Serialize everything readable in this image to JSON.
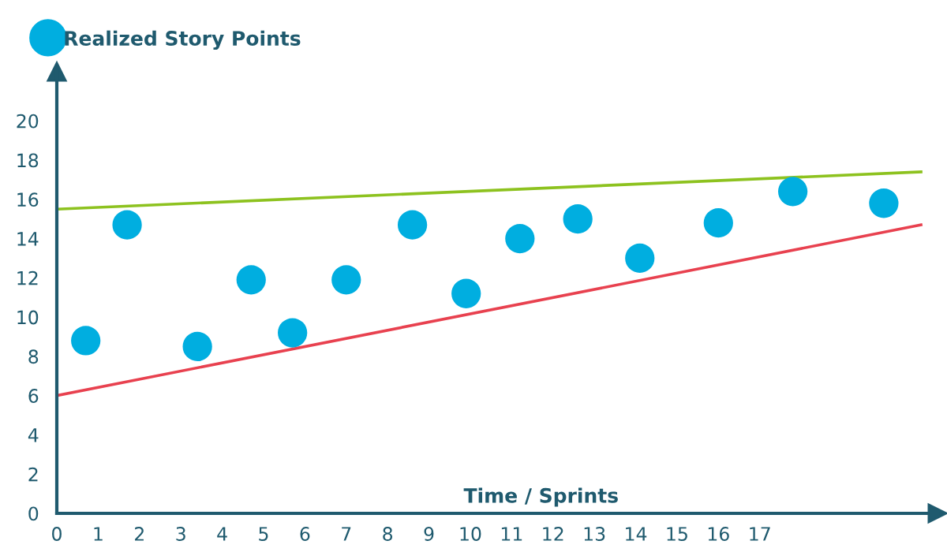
{
  "chart_data": {
    "type": "scatter",
    "xlabel": "Time / Sprints",
    "legend": "top left",
    "grid": false,
    "xlim": [
      0,
      21.3
    ],
    "ylim": [
      0,
      22.5
    ],
    "xticks": [
      0,
      1,
      2,
      3,
      4,
      5,
      6,
      7,
      8,
      9,
      10,
      11,
      12,
      13,
      14,
      15,
      16,
      17
    ],
    "yticks": [
      0,
      2,
      4,
      6,
      8,
      10,
      12,
      14,
      16,
      18,
      20
    ],
    "series": [
      {
        "name": "Realized Story Points",
        "marker": "circle",
        "color": "#00aee0",
        "x": [
          0.7,
          1.7,
          3.4,
          4.7,
          5.7,
          7.0,
          8.6,
          9.9,
          11.2,
          12.6,
          14.1,
          16.0,
          17.8,
          20.0
        ],
        "values": [
          8.8,
          14.7,
          8.5,
          11.9,
          9.2,
          11.9,
          14.7,
          11.2,
          14.0,
          15.0,
          13.0,
          14.8,
          16.4,
          15.8
        ]
      },
      {
        "type": "line",
        "color": "#8dc21f",
        "x": [
          0,
          20.9
        ],
        "values": [
          15.5,
          17.4
        ]
      },
      {
        "type": "line",
        "color": "#e8414f",
        "x": [
          0,
          20.9
        ],
        "values": [
          6.0,
          14.7
        ]
      }
    ]
  }
}
